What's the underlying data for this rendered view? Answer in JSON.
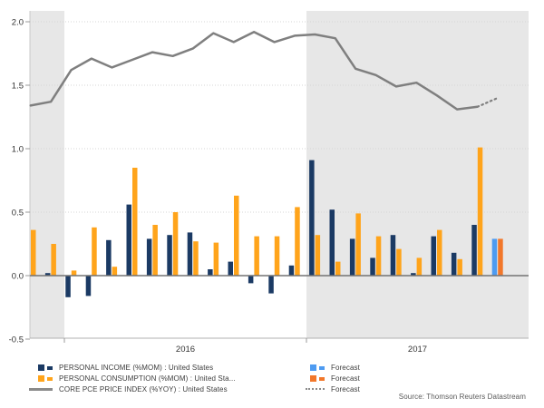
{
  "chart_data": {
    "type": "bar+line",
    "title": "",
    "months_shown": 24,
    "x_axis": {
      "year_labels": [
        "2016",
        "2017"
      ],
      "note": "x axis spans late 2015 through 2017; only year labels are shown",
      "shaded_year_bands": [
        "pre-2016 months (2 bars at left)",
        "all of 2017 region"
      ]
    },
    "y_axis": {
      "min": -0.5,
      "max": 2.0,
      "tick_labels": [
        "2.0",
        "1.5",
        "1.0",
        "0.5",
        "0.0",
        "-0.5"
      ],
      "grid": "dotted horizontal gridlines at 0.5 steps"
    },
    "series": [
      {
        "name": "PERSONAL INCOME (%MOM) : United States",
        "kind": "bar",
        "color": "#1B3A64",
        "forecast_color": "#4E9BF1",
        "values": [
          0.0,
          0.02,
          -0.17,
          -0.16,
          0.28,
          0.56,
          0.29,
          0.32,
          0.34,
          0.05,
          0.11,
          -0.06,
          -0.14,
          0.08,
          0.91,
          0.52,
          0.29,
          0.14,
          0.32,
          0.02,
          0.31,
          0.18,
          0.4,
          0.29
        ]
      },
      {
        "name": "PERSONAL CONSUMPTION (%MOM) : United States",
        "kind": "bar",
        "color": "#FFA41B",
        "forecast_color": "#F2772A",
        "values": [
          0.36,
          0.25,
          0.04,
          0.38,
          0.07,
          0.85,
          0.4,
          0.5,
          0.27,
          0.26,
          0.63,
          0.31,
          0.31,
          0.54,
          0.32,
          0.11,
          0.49,
          0.31,
          0.21,
          0.14,
          0.36,
          0.13,
          1.01,
          0.29
        ]
      },
      {
        "name": "CORE PCE PRICE INDEX (%YOY) : United States",
        "kind": "line",
        "color": "#7F7F7F",
        "forecast_style": "dotted",
        "values": [
          1.34,
          1.37,
          1.62,
          1.71,
          1.64,
          1.7,
          1.76,
          1.73,
          1.79,
          1.91,
          1.84,
          1.92,
          1.84,
          1.89,
          1.9,
          1.87,
          1.63,
          1.58,
          1.49,
          1.52,
          1.42,
          1.31,
          1.33,
          1.4
        ]
      }
    ],
    "forecast_start_index": 23,
    "band_color": "#E7E7E7",
    "zero_line_color": "#737373",
    "legend_position": "bottom"
  },
  "legend": {
    "rows": [
      {
        "label": "PERSONAL INCOME (%MOM) : United States",
        "forecast_label": "Forecast"
      },
      {
        "label": "PERSONAL CONSUMPTION (%MOM) : United Sta...",
        "forecast_label": "Forecast"
      },
      {
        "label": "CORE PCE PRICE INDEX (%YOY) : United States",
        "forecast_label": "Forecast"
      }
    ]
  },
  "source_note": "Source: Thomson Reuters Datastream"
}
